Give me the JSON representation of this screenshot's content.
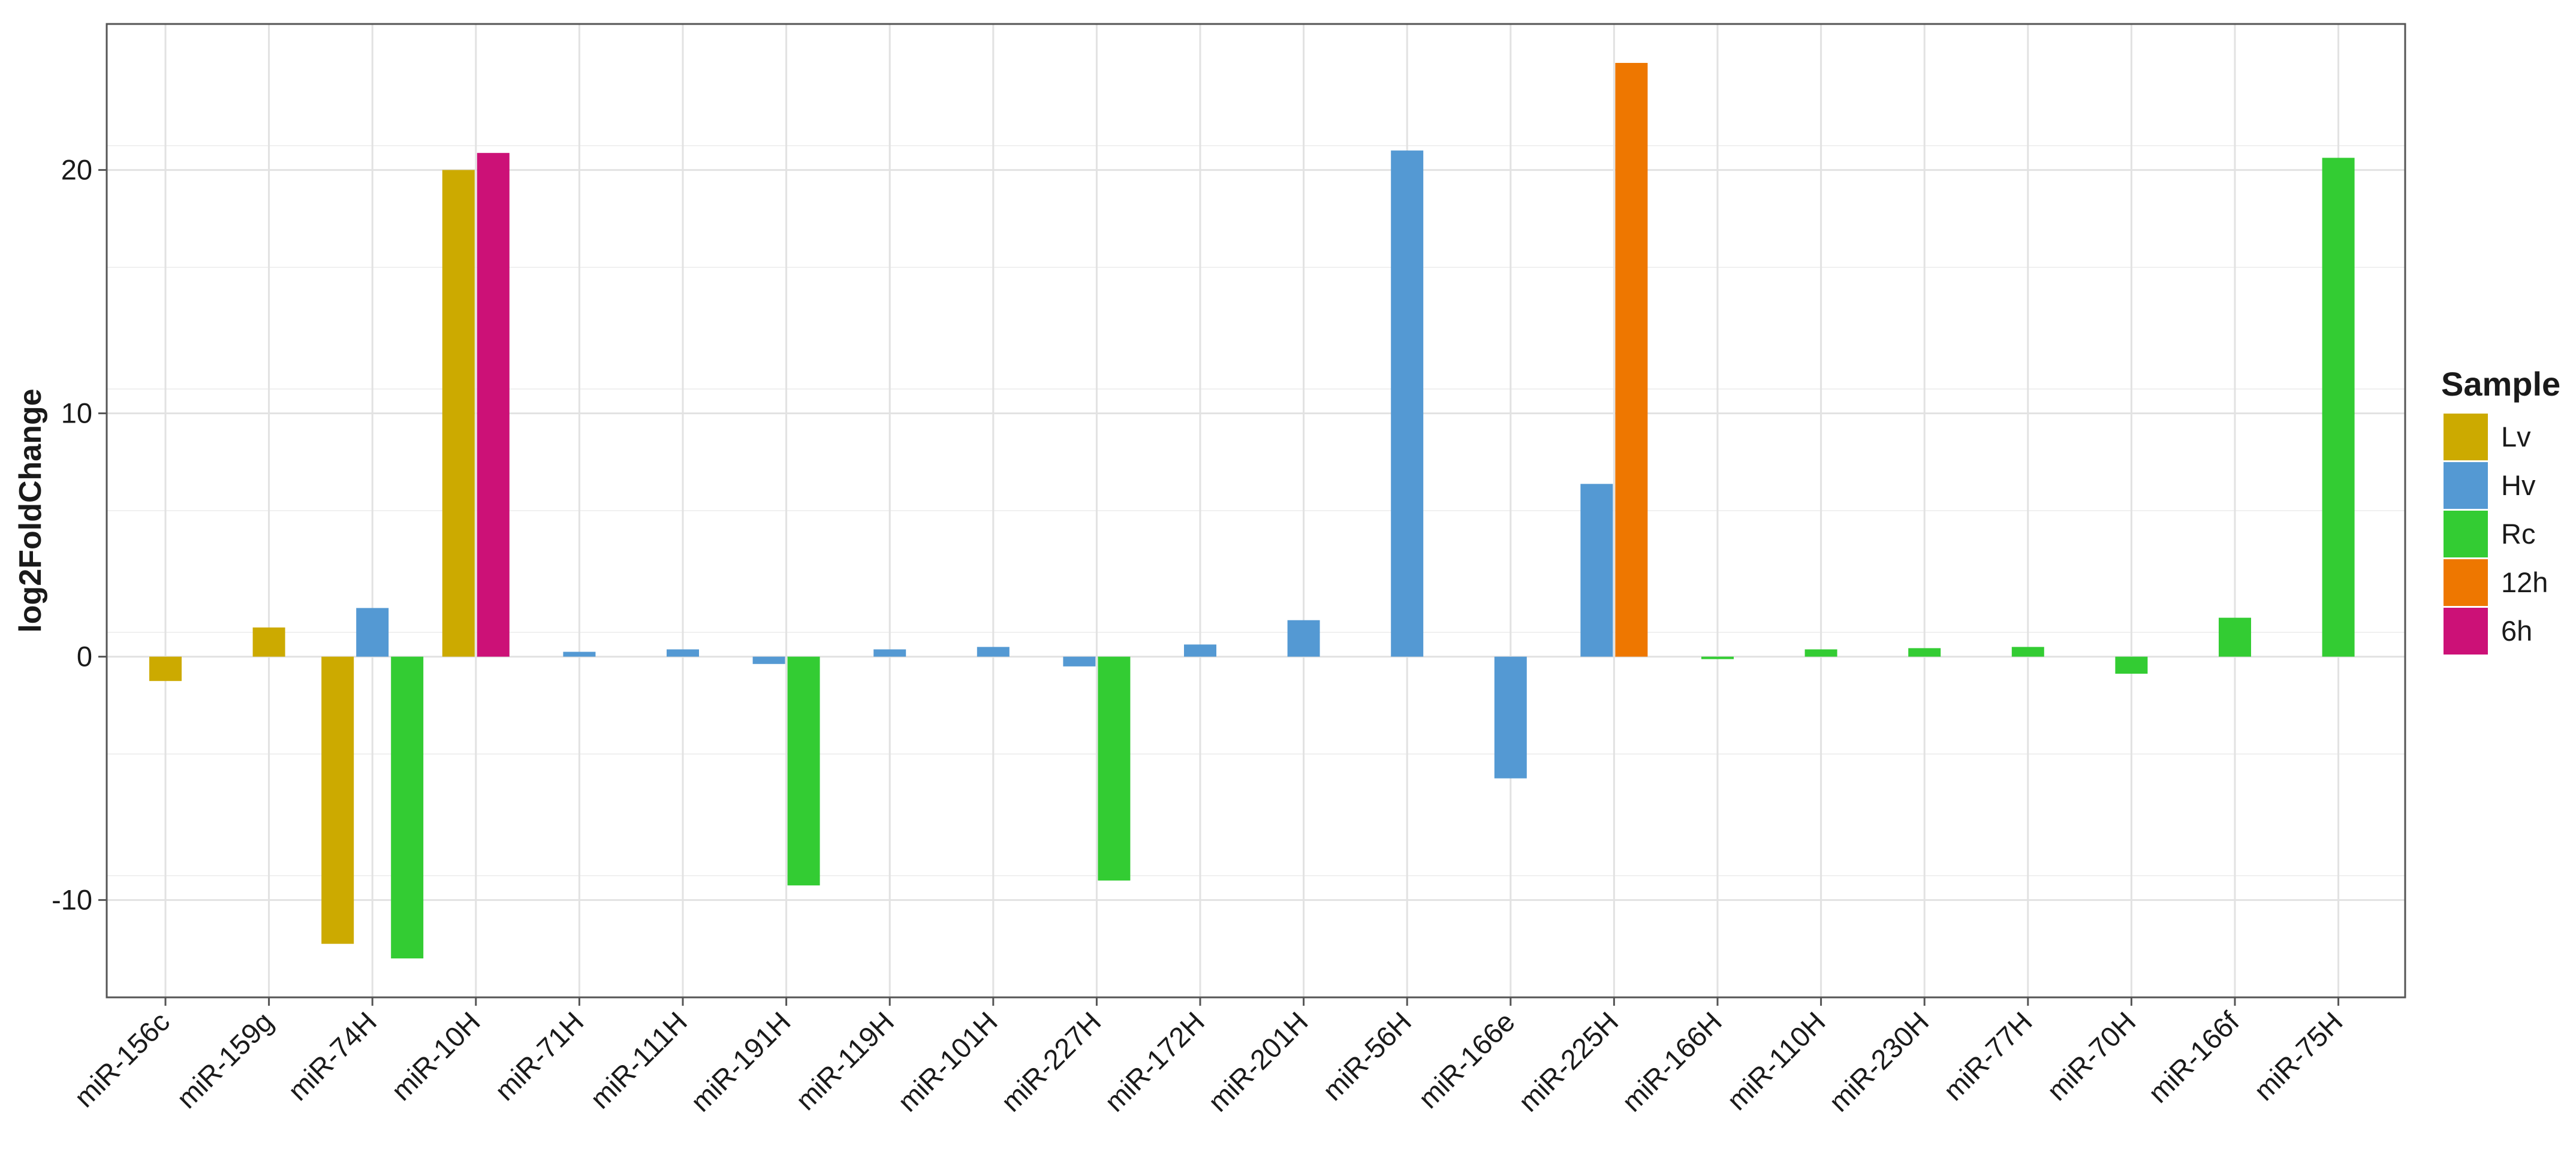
{
  "chart_data": {
    "type": "bar",
    "ylabel": "log2FoldChange",
    "xlabel": "",
    "ylim": [
      -14,
      26
    ],
    "yticks": [
      -10,
      0,
      10,
      20
    ],
    "grid": true,
    "legend": {
      "title": "Sample",
      "placement": "right",
      "entries": [
        {
          "name": "Lv",
          "color": "#CCAA00"
        },
        {
          "name": "Hv",
          "color": "#5499D3"
        },
        {
          "name": "Rc",
          "color": "#33CC33"
        },
        {
          "name": "12h",
          "color": "#EE7700"
        },
        {
          "name": "6h",
          "color": "#CC1177"
        }
      ]
    },
    "categories": [
      "miR-156c",
      "miR-159g",
      "miR-74H",
      "miR-10H",
      "miR-71H",
      "miR-111H",
      "miR-191H",
      "miR-119H",
      "miR-101H",
      "miR-227H",
      "miR-172H",
      "miR-201H",
      "miR-56H",
      "miR-166e",
      "miR-225H",
      "miR-166H",
      "miR-110H",
      "miR-230H",
      "miR-77H",
      "miR-70H",
      "miR-166f",
      "miR-75H"
    ],
    "bars": [
      [
        {
          "series": "Lv",
          "value": -1.0
        }
      ],
      [
        {
          "series": "Lv",
          "value": 1.2
        }
      ],
      [
        {
          "series": "Lv",
          "value": -11.8
        },
        {
          "series": "Hv",
          "value": 2.0
        },
        {
          "series": "Rc",
          "value": -12.4
        }
      ],
      [
        {
          "series": "Lv",
          "value": 20.0
        },
        {
          "series": "6h",
          "value": 20.7
        }
      ],
      [
        {
          "series": "Hv",
          "value": 0.2
        }
      ],
      [
        {
          "series": "Hv",
          "value": 0.3
        }
      ],
      [
        {
          "series": "Hv",
          "value": -0.3
        },
        {
          "series": "Rc",
          "value": -9.4
        }
      ],
      [
        {
          "series": "Hv",
          "value": 0.3
        }
      ],
      [
        {
          "series": "Hv",
          "value": 0.4
        }
      ],
      [
        {
          "series": "Hv",
          "value": -0.4
        },
        {
          "series": "Rc",
          "value": -9.2
        }
      ],
      [
        {
          "series": "Hv",
          "value": 0.5
        }
      ],
      [
        {
          "series": "Hv",
          "value": 1.5
        }
      ],
      [
        {
          "series": "Hv",
          "value": 20.8
        }
      ],
      [
        {
          "series": "Hv",
          "value": -5.0
        }
      ],
      [
        {
          "series": "Hv",
          "value": 7.1
        },
        {
          "series": "12h",
          "value": 24.4
        }
      ],
      [
        {
          "series": "Rc",
          "value": -0.1
        }
      ],
      [
        {
          "series": "Rc",
          "value": 0.3
        }
      ],
      [
        {
          "series": "Rc",
          "value": 0.35
        }
      ],
      [
        {
          "series": "Rc",
          "value": 0.4
        }
      ],
      [
        {
          "series": "Rc",
          "value": -0.7
        }
      ],
      [
        {
          "series": "Rc",
          "value": 1.6
        }
      ],
      [
        {
          "series": "Rc",
          "value": 20.5
        }
      ]
    ]
  }
}
